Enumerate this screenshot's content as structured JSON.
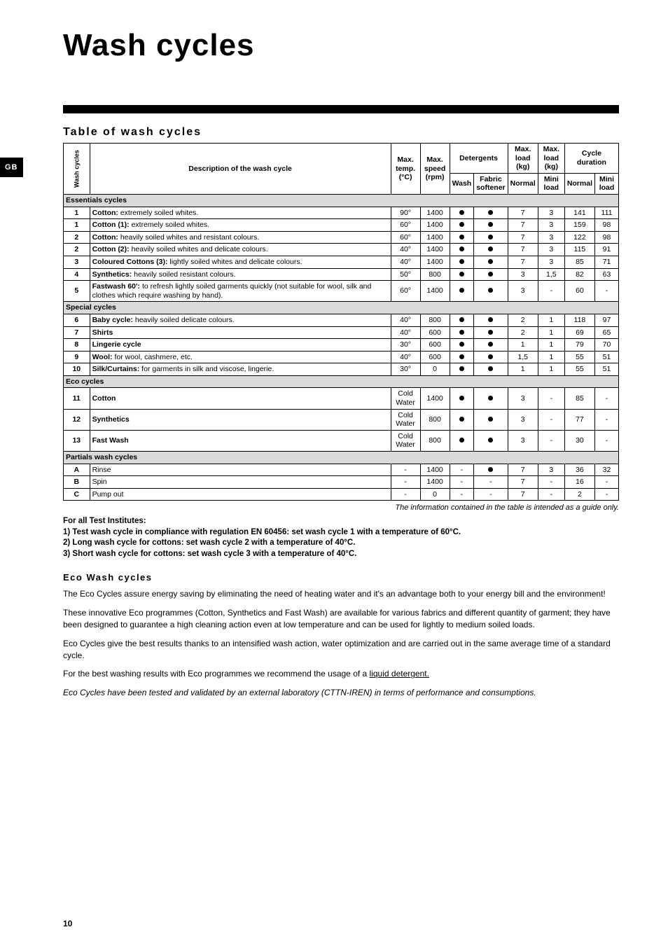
{
  "gb_label": "GB",
  "title": "Wash cycles",
  "table_heading": "Table of wash cycles",
  "headers": {
    "wash_cycles_col": "Wash cycles",
    "description": "Description of the wash cycle",
    "max_temp": "Max. temp. (°C)",
    "max_speed": "Max. speed (rpm)",
    "detergents": "Detergents",
    "wash": "Wash",
    "fabric_softener": "Fabric softener",
    "max_load_kg": "Max. load (kg)",
    "max_load_kg_mini": "Max. load (kg)",
    "normal": "Normal",
    "mini_load": "Mini load",
    "cycle_duration": "Cycle duration"
  },
  "categories": {
    "essentials": "Essentials cycles",
    "special": "Special cycles",
    "eco": "Eco cycles",
    "partials": "Partials wash cycles"
  },
  "rows": [
    {
      "cat": "essentials"
    },
    {
      "n": "1",
      "dl": "Cotton:",
      "dd": " extremely soiled whites.",
      "t": "90°",
      "s": "1400",
      "w": true,
      "f": true,
      "ln": "7",
      "lm": "3",
      "dn": "141",
      "dm": "111"
    },
    {
      "n": "1",
      "dl": "Cotton (1):",
      "dd": " extremely soiled whites.",
      "t": "60°",
      "s": "1400",
      "w": true,
      "f": true,
      "ln": "7",
      "lm": "3",
      "dn": "159",
      "dm": "98"
    },
    {
      "n": "2",
      "dl": "Cotton:",
      "dd": " heavily soiled whites and resistant colours.",
      "t": "60°",
      "s": "1400",
      "w": true,
      "f": true,
      "ln": "7",
      "lm": "3",
      "dn": "122",
      "dm": "98"
    },
    {
      "n": "2",
      "dl": "Cotton (2):",
      "dd": " heavily soiled whites and delicate colours.",
      "t": "40°",
      "s": "1400",
      "w": true,
      "f": true,
      "ln": "7",
      "lm": "3",
      "dn": "115",
      "dm": "91"
    },
    {
      "n": "3",
      "dl": "Coloured Cottons (3):",
      "dd": "  lightly soiled whites and delicate colours.",
      "t": "40°",
      "s": "1400",
      "w": true,
      "f": true,
      "ln": "7",
      "lm": "3",
      "dn": "85",
      "dm": "71"
    },
    {
      "n": "4",
      "dl": "Synthetics:",
      "dd": " heavily soiled resistant colours.",
      "t": "50°",
      "s": "800",
      "w": true,
      "f": true,
      "ln": "3",
      "lm": "1,5",
      "dn": "82",
      "dm": "63"
    },
    {
      "n": "5",
      "dl": "Fastwash 60':",
      "dd": " to refresh lightly soiled garments quickly (not suitable for wool, silk and clothes which require washing by hand).",
      "t": "60°",
      "s": "1400",
      "w": true,
      "f": true,
      "ln": "3",
      "lm": "-",
      "dn": "60",
      "dm": "-"
    },
    {
      "cat": "special"
    },
    {
      "n": "6",
      "dl": "Baby cycle:",
      "dd": " heavily soiled delicate colours.",
      "t": "40°",
      "s": "800",
      "w": true,
      "f": true,
      "ln": "2",
      "lm": "1",
      "dn": "118",
      "dm": "97"
    },
    {
      "n": "7",
      "dl": "Shirts",
      "dd": "",
      "t": "40°",
      "s": "600",
      "w": true,
      "f": true,
      "ln": "2",
      "lm": "1",
      "dn": "69",
      "dm": "65"
    },
    {
      "n": "8",
      "dl": "Lingerie cycle",
      "dd": "",
      "t": "30°",
      "s": "600",
      "w": true,
      "f": true,
      "ln": "1",
      "lm": "1",
      "dn": "79",
      "dm": "70"
    },
    {
      "n": "9",
      "dl": "Wool:",
      "dd": " for wool, cashmere, etc.",
      "t": "40°",
      "s": "600",
      "w": true,
      "f": true,
      "ln": "1,5",
      "lm": "1",
      "dn": "55",
      "dm": "51"
    },
    {
      "n": "10",
      "dl": "Silk/Curtains:",
      "dd": " for garments in silk and viscose, lingerie.",
      "t": "30°",
      "s": "0",
      "w": true,
      "f": true,
      "ln": "1",
      "lm": "1",
      "dn": "55",
      "dm": "51"
    },
    {
      "cat": "eco"
    },
    {
      "n": "11",
      "dl": "Cotton",
      "dd": "",
      "t": "Cold Water",
      "s": "1400",
      "w": true,
      "f": true,
      "ln": "3",
      "lm": "-",
      "dn": "85",
      "dm": "-"
    },
    {
      "n": "12",
      "dl": "Synthetics",
      "dd": "",
      "t": "Cold Water",
      "s": "800",
      "w": true,
      "f": true,
      "ln": "3",
      "lm": "-",
      "dn": "77",
      "dm": "-"
    },
    {
      "n": "13",
      "dl": "Fast Wash",
      "dd": "",
      "t": "Cold Water",
      "s": "800",
      "w": true,
      "f": true,
      "ln": "3",
      "lm": "-",
      "dn": "30",
      "dm": "-"
    },
    {
      "cat": "partials"
    },
    {
      "n": "A",
      "dl": "",
      "dd": "Rinse",
      "t": "-",
      "s": "1400",
      "w": "-",
      "f": true,
      "ln": "7",
      "lm": "3",
      "dn": "36",
      "dm": "32"
    },
    {
      "n": "B",
      "dl": "",
      "dd": "Spin",
      "t": "-",
      "s": "1400",
      "w": "-",
      "f": "-",
      "ln": "7",
      "lm": "-",
      "dn": "16",
      "dm": "-"
    },
    {
      "n": "C",
      "dl": "",
      "dd": "Pump out",
      "t": "-",
      "s": "0",
      "w": "-",
      "f": "-",
      "ln": "7",
      "lm": "-",
      "dn": "2",
      "dm": "-"
    }
  ],
  "guide_note": "The information contained in the table is intended as a guide only.",
  "inst_title": "For all Test Institutes:",
  "inst_1": "1) Test wash cycle in compliance with regulation EN 60456: set wash cycle 1 with a temperature of 60°C.",
  "inst_2": "2) Long wash cycle for cottons: set wash cycle 2 with a temperature of 40°C.",
  "inst_3": "3) Short wash cycle for cottons: set wash cycle 3 with a temperature of 40°C.",
  "eco_heading": "Eco Wash cycles",
  "eco_p1": "The Eco Cycles assure energy saving by eliminating the need of heating water and it's an advantage both to your energy bill and the environment!",
  "eco_p2": "These innovative Eco programmes (Cotton, Synthetics and Fast Wash)  are available for various fabrics and different quantity of garment; they have been designed to guarantee a high cleaning action even at low temperature and can be used for lightly to medium soiled loads.",
  "eco_p3": "Eco Cycles give the best results thanks to an intensified wash action, water optimization and are carried out in the same average time of a standard cycle.",
  "eco_p4_pre": "For the best washing results with Eco programmes we recommend the usage of a ",
  "eco_p4_u": "liquid detergent.",
  "eco_p5": "Eco Cycles have been tested and validated by an external laboratory (CTTN-IREN) in terms of performance and consumptions.",
  "page_number": "10",
  "colors": {
    "cat_bg": "#d9d9d9",
    "text": "#000000",
    "bg": "#ffffff"
  }
}
